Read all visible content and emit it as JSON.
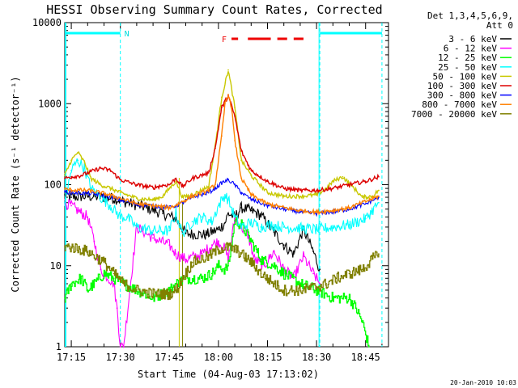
{
  "chart_data": {
    "type": "line",
    "title": "HESSI Observing Summary Count Rates, Corrected",
    "xlabel": "Start Time (04-Aug-03 17:13:02)",
    "ylabel": "Corrected Count Rate (s⁻¹ detector⁻¹)",
    "footer": "20-Jan-2010 10:03",
    "legend_header": [
      "Det 1,3,4,5,6,9,",
      "Att 0"
    ],
    "legend_placement": "right",
    "y_scale": "log",
    "ylim": [
      1,
      10000
    ],
    "yticks": [
      1,
      10,
      100,
      1000,
      10000
    ],
    "ytick_labels": [
      "1",
      "10",
      "100",
      "1000",
      "10000"
    ],
    "xlim": [
      "17:13",
      "18:52"
    ],
    "xticks": [
      "17:15",
      "17:30",
      "17:45",
      "18:00",
      "18:15",
      "18:30",
      "18:45"
    ],
    "annotations": {
      "night_label": "N",
      "flare_label": "F",
      "night_segments": [
        [
          "17:13",
          "17:30"
        ],
        [
          "18:31",
          "18:50"
        ]
      ],
      "flare_segments": [
        [
          "18:04",
          "18:06"
        ],
        [
          "18:09",
          "18:16"
        ],
        [
          "18:18",
          "18:21"
        ],
        [
          "18:23",
          "18:26"
        ]
      ],
      "dashed_markers": [
        "17:30",
        "18:31",
        "18:50"
      ],
      "gap": [
        "17:48",
        "17:49"
      ]
    },
    "series": [
      {
        "name": "3 - 6 keV",
        "color": "#000000",
        "x": [
          "17:13",
          "17:15",
          "17:20",
          "17:28",
          "17:31",
          "17:38",
          "17:43",
          "17:47",
          "17:48",
          "17:50",
          "17:56",
          "17:58",
          "18:00",
          "18:02",
          "18:03",
          "18:05",
          "18:07",
          "18:10",
          "18:13",
          "18:17",
          "18:20",
          "18:23",
          "18:26",
          "18:29",
          "18:31"
        ],
        "y": [
          75,
          70,
          72,
          68,
          62,
          52,
          44,
          38,
          33,
          25,
          24,
          26,
          28,
          34,
          44,
          40,
          52,
          48,
          42,
          26,
          18,
          14,
          28,
          15,
          9
        ]
      },
      {
        "name": "6 - 12 keV",
        "color": "#ff00ff",
        "x": [
          "17:13",
          "17:15",
          "17:18",
          "17:20",
          "17:22",
          "17:24",
          "17:28",
          "17:29",
          "17:30",
          "17:31",
          "17:35",
          "17:40",
          "17:45",
          "17:47",
          "17:50",
          "17:55",
          "17:58",
          "18:00",
          "18:02",
          "18:03",
          "18:05",
          "18:07",
          "18:09",
          "18:11",
          "18:14",
          "18:17",
          "18:20",
          "18:23",
          "18:26",
          "18:29",
          "18:31"
        ],
        "y": [
          60,
          55,
          45,
          40,
          20,
          9,
          6,
          3,
          1,
          1,
          30,
          22,
          18,
          14,
          12,
          14,
          18,
          20,
          16,
          12,
          38,
          30,
          24,
          12,
          10,
          15,
          9,
          7,
          13,
          8,
          6
        ]
      },
      {
        "name": "12 - 25 keV",
        "color": "#00ff00",
        "x": [
          "17:13",
          "17:15",
          "17:18",
          "17:20",
          "17:22",
          "17:25",
          "17:28",
          "17:31",
          "17:35",
          "17:40",
          "17:45",
          "17:47",
          "17:50",
          "17:55",
          "17:58",
          "18:00",
          "18:02",
          "18:03",
          "18:05",
          "18:07",
          "18:10",
          "18:13",
          "18:17",
          "18:20",
          "18:25",
          "18:30",
          "18:35",
          "18:40",
          "18:42",
          "18:44",
          "18:46"
        ],
        "y": [
          4,
          6,
          7,
          5,
          6,
          8,
          7,
          6,
          5,
          4,
          5,
          6,
          7,
          7,
          8,
          10,
          9,
          10,
          36,
          32,
          20,
          12,
          10,
          8,
          6,
          5,
          4,
          4,
          3,
          2,
          1
        ]
      },
      {
        "name": "25 - 50 keV",
        "color": "#00ffff",
        "x": [
          "17:13",
          "17:15",
          "17:17",
          "17:19",
          "17:21",
          "17:24",
          "17:27",
          "17:30",
          "17:32",
          "17:35",
          "17:40",
          "17:45",
          "17:47",
          "17:49",
          "17:52",
          "17:55",
          "17:58",
          "18:00",
          "18:02",
          "18:03",
          "18:05",
          "18:07",
          "18:10",
          "18:13",
          "18:16",
          "18:20",
          "18:25",
          "18:30",
          "18:35",
          "18:40",
          "18:45",
          "18:49"
        ],
        "y": [
          60,
          150,
          200,
          160,
          90,
          70,
          55,
          40,
          40,
          30,
          27,
          27,
          45,
          25,
          35,
          40,
          35,
          55,
          75,
          65,
          40,
          30,
          34,
          30,
          32,
          30,
          29,
          28,
          30,
          32,
          38,
          60
        ]
      },
      {
        "name": "50 - 100 keV",
        "color": "#c8c800",
        "x": [
          "17:13",
          "17:15",
          "17:17",
          "17:19",
          "17:21",
          "17:24",
          "17:27",
          "17:30",
          "17:35",
          "17:40",
          "17:43",
          "17:45",
          "17:47",
          "17:49",
          "17:52",
          "17:57",
          "17:59",
          "18:01",
          "18:03",
          "18:05",
          "18:07",
          "18:10",
          "18:15",
          "18:20",
          "18:25",
          "18:30",
          "18:33",
          "18:35",
          "18:38",
          "18:41",
          "18:44",
          "18:47",
          "18:49"
        ],
        "y": [
          130,
          200,
          250,
          190,
          120,
          100,
          90,
          80,
          68,
          65,
          72,
          90,
          110,
          70,
          75,
          95,
          300,
          1200,
          2600,
          900,
          200,
          130,
          80,
          72,
          72,
          75,
          90,
          110,
          125,
          95,
          70,
          72,
          85
        ]
      },
      {
        "name": "100 - 300 keV",
        "color": "#dd0000",
        "x": [
          "17:13",
          "17:15",
          "17:18",
          "17:21",
          "17:24",
          "17:27",
          "17:30",
          "17:35",
          "17:40",
          "17:43",
          "17:45",
          "17:47",
          "17:49",
          "17:52",
          "17:57",
          "17:59",
          "18:01",
          "18:03",
          "18:05",
          "18:07",
          "18:10",
          "18:15",
          "18:20",
          "18:25",
          "18:30",
          "18:35",
          "18:40",
          "18:45",
          "18:49"
        ],
        "y": [
          120,
          125,
          130,
          145,
          160,
          150,
          115,
          100,
          92,
          98,
          100,
          120,
          95,
          120,
          140,
          280,
          900,
          1250,
          700,
          260,
          150,
          110,
          90,
          85,
          85,
          90,
          100,
          110,
          125
        ]
      },
      {
        "name": "300 - 800 keV",
        "color": "#0000ff",
        "x": [
          "17:13",
          "17:15",
          "17:20",
          "17:25",
          "17:30",
          "17:35",
          "17:40",
          "17:45",
          "17:47",
          "17:49",
          "17:52",
          "17:57",
          "17:59",
          "18:01",
          "18:03",
          "18:05",
          "18:07",
          "18:10",
          "18:15",
          "18:20",
          "18:25",
          "18:30",
          "18:35",
          "18:40",
          "18:45",
          "18:49"
        ],
        "y": [
          82,
          80,
          78,
          74,
          65,
          57,
          55,
          52,
          55,
          60,
          70,
          80,
          90,
          105,
          115,
          100,
          80,
          66,
          55,
          50,
          46,
          44,
          46,
          50,
          58,
          70
        ]
      },
      {
        "name": "800 - 7000 keV",
        "color": "#ff8000",
        "x": [
          "17:13",
          "17:15",
          "17:20",
          "17:25",
          "17:30",
          "17:35",
          "17:40",
          "17:45",
          "17:47",
          "17:49",
          "17:52",
          "17:57",
          "17:59",
          "18:01",
          "18:02",
          "18:03",
          "18:04",
          "18:05",
          "18:07",
          "18:10",
          "18:15",
          "18:20",
          "18:25",
          "18:30",
          "18:35",
          "18:40",
          "18:45",
          "18:49"
        ],
        "y": [
          88,
          86,
          85,
          78,
          68,
          58,
          55,
          52,
          56,
          62,
          72,
          85,
          100,
          400,
          1000,
          1300,
          900,
          350,
          120,
          75,
          58,
          52,
          48,
          46,
          48,
          52,
          62,
          72
        ]
      },
      {
        "name": "7000 - 20000 keV",
        "color": "#808000",
        "x": [
          "17:13",
          "17:15",
          "17:20",
          "17:25",
          "17:28",
          "17:31",
          "17:35",
          "17:40",
          "17:45",
          "17:47",
          "17:49",
          "17:52",
          "17:57",
          "18:00",
          "18:03",
          "18:05",
          "18:07",
          "18:10",
          "18:13",
          "18:17",
          "18:20",
          "18:25",
          "18:30",
          "18:33",
          "18:36",
          "18:40",
          "18:44",
          "18:47",
          "18:49"
        ],
        "y": [
          17,
          17,
          15,
          11,
          8,
          6,
          5,
          4.5,
          4.5,
          5,
          7,
          11,
          13,
          16,
          17,
          16,
          14,
          11,
          8,
          6,
          5,
          5,
          5.5,
          6,
          7,
          8,
          9,
          12,
          14
        ]
      }
    ]
  }
}
